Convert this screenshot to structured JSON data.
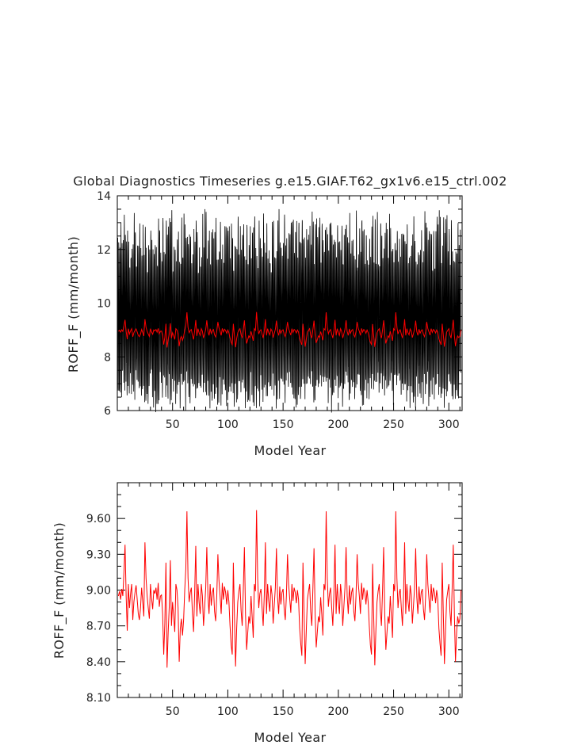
{
  "title": "Global Diagnostics Timeseries g.e15.GIAF.T62_gx1v6.e15_ctrl.002",
  "colors": {
    "monthly": "#000000",
    "annual": "#ff0000",
    "axes": "#000000"
  },
  "chart_data": [
    {
      "type": "line",
      "xlabel": "Model Year",
      "ylabel": "ROFF_F (mm/month)",
      "xlim": [
        0,
        312
      ],
      "ylim": [
        6,
        14
      ],
      "xticks": [
        50,
        100,
        150,
        200,
        250,
        300
      ],
      "yticks": [
        6,
        8,
        10,
        12,
        14
      ],
      "yticklabels": [
        "6",
        "8",
        "10",
        "12",
        "14"
      ],
      "series": [
        {
          "role": "monthly",
          "color": "#000000",
          "resolution": "monthly",
          "seasonal_min_range": [
            6.2,
            7.4
          ],
          "seasonal_max_range": [
            11.3,
            13.3
          ]
        },
        {
          "role": "annual",
          "color": "#ff0000",
          "resolution": "annual"
        }
      ]
    },
    {
      "type": "line",
      "xlabel": "Model Year",
      "ylabel": "ROFF_F (mm/month)",
      "xlim": [
        0,
        312
      ],
      "ylim": [
        8.1,
        9.9
      ],
      "xticks": [
        50,
        100,
        150,
        200,
        250,
        300
      ],
      "yticks": [
        8.1,
        8.4,
        8.7,
        9.0,
        9.3,
        9.6
      ],
      "yticklabels": [
        "8.10",
        "8.40",
        "8.70",
        "9.00",
        "9.30",
        "9.60"
      ],
      "series": [
        {
          "role": "annual",
          "color": "#ff0000",
          "x_start": 1,
          "x_step": 1,
          "values": [
            8.95,
            8.99,
            8.92,
            9.01,
            8.95,
            9.15,
            9.38,
            8.95,
            8.66,
            9.05,
            8.85,
            8.97,
            9.05,
            8.75,
            8.9,
            8.98,
            9.04,
            8.92,
            8.8,
            8.75,
            8.85,
            9.02,
            8.9,
            8.78,
            9.4,
            9.1,
            8.95,
            8.85,
            8.76,
            9.05,
            8.93,
            8.84,
            9.0,
            8.97,
            9.02,
            8.92,
            9.06,
            8.86,
            8.95,
            8.96,
            8.8,
            8.46,
            8.72,
            9.23,
            8.35,
            8.64,
            8.86,
            9.25,
            8.7,
            8.9,
            8.78,
            8.65,
            9.05,
            9.0,
            8.85,
            8.4,
            8.68,
            8.76,
            8.62,
            8.75,
            9.0,
            9.18,
            9.66,
            9.1,
            8.9,
            8.98,
            9.02,
            8.8,
            8.65,
            8.98,
            9.37,
            8.78,
            9.05,
            8.9,
            8.8,
            9.05,
            8.95,
            8.7,
            8.85,
            9.02,
            9.36,
            8.95,
            8.8,
            9.05,
            8.87,
            8.98,
            9.02,
            8.82,
            8.74,
            8.95,
            9.3,
            9.08,
            8.95,
            8.8,
            9.06,
            8.92,
            9.03,
            8.98,
            8.88,
            9.0,
            8.9,
            8.7,
            8.54,
            8.46,
            9.23,
            8.78,
            8.36,
            8.68,
            8.9,
            8.99,
            9.05,
            8.83,
            8.7,
            9.0,
            9.36,
            8.8,
            8.5,
            8.64,
            8.78,
            8.72,
            8.95,
            8.78,
            8.6,
            9.05,
            8.99,
            9.67,
            9.1,
            8.85,
            8.97,
            9.01,
            8.85,
            8.7,
            8.96,
            9.4,
            8.8,
            9.05,
            8.91,
            8.82,
            9.04,
            8.96,
            8.72,
            8.87,
            9.02,
            9.35,
            8.94,
            8.8,
            9.03,
            8.88,
            8.98,
            9.01,
            8.84,
            8.75,
            8.95,
            9.3,
            9.05,
            8.93,
            8.81,
            9.05,
            8.91,
            9.02,
            8.98,
            8.89,
            9.0,
            8.92,
            8.68,
            8.55,
            8.45,
            9.23,
            8.8,
            8.38,
            8.66,
            8.92,
            8.99,
            9.05,
            8.82,
            8.7,
            9.02,
            9.35,
            8.8,
            8.52,
            8.65,
            8.78,
            8.73,
            8.94,
            8.8,
            8.62,
            9.05,
            9.0,
            9.66,
            9.1,
            8.86,
            8.97,
            9.02,
            8.85,
            8.7,
            8.97,
            9.38,
            8.8,
            9.05,
            8.9,
            8.8,
            9.05,
            8.95,
            8.7,
            8.86,
            9.02,
            9.36,
            8.95,
            8.8,
            9.04,
            8.88,
            8.98,
            9.02,
            8.82,
            8.74,
            8.95,
            9.3,
            9.06,
            8.95,
            8.8,
            9.06,
            8.92,
            9.02,
            8.98,
            8.88,
            9.0,
            8.9,
            8.7,
            8.54,
            8.46,
            9.22,
            8.78,
            8.37,
            8.67,
            8.9,
            8.99,
            9.05,
            8.83,
            8.7,
            9.0,
            9.36,
            8.8,
            8.5,
            8.64,
            8.78,
            8.72,
            8.95,
            8.78,
            8.6,
            9.05,
            8.99,
            9.66,
            9.1,
            8.85,
            8.97,
            9.01,
            8.85,
            8.7,
            8.96,
            9.4,
            8.8,
            9.05,
            8.91,
            8.82,
            9.04,
            8.96,
            8.72,
            8.87,
            9.02,
            9.35,
            8.94,
            8.8,
            9.03,
            8.88,
            8.98,
            9.01,
            8.84,
            8.75,
            8.95,
            9.3,
            9.05,
            8.93,
            8.81,
            9.05,
            8.91,
            9.02,
            8.98,
            8.89,
            9.0,
            8.92,
            8.68,
            8.55,
            8.45,
            9.23,
            8.8,
            8.38,
            8.66,
            8.92,
            8.99,
            9.05,
            8.82,
            8.7,
            9.02,
            9.38,
            8.8,
            8.4,
            8.64,
            8.78,
            8.72,
            8.76,
            9.0
          ]
        }
      ]
    }
  ]
}
